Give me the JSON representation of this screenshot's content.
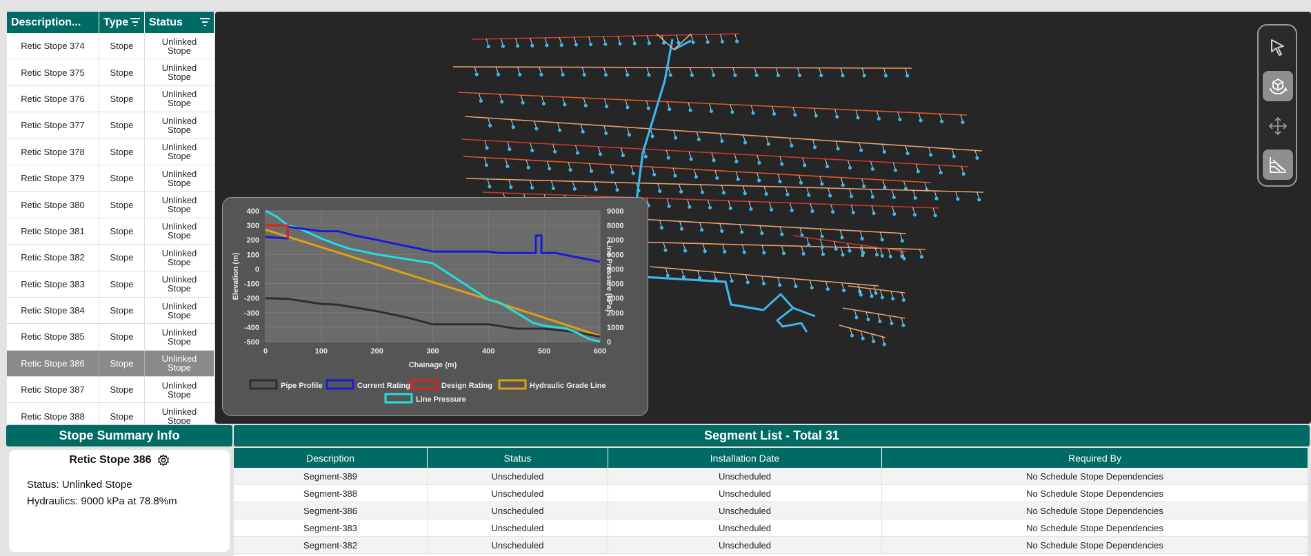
{
  "stope_table": {
    "columns": [
      "Description...",
      "Type",
      "Status"
    ],
    "rows": [
      {
        "description": "Retic Stope 374",
        "type": "Stope",
        "status": "Unlinked Stope"
      },
      {
        "description": "Retic Stope 375",
        "type": "Stope",
        "status": "Unlinked Stope"
      },
      {
        "description": "Retic Stope 376",
        "type": "Stope",
        "status": "Unlinked Stope"
      },
      {
        "description": "Retic Stope 377",
        "type": "Stope",
        "status": "Unlinked Stope"
      },
      {
        "description": "Retic Stope 378",
        "type": "Stope",
        "status": "Unlinked Stope"
      },
      {
        "description": "Retic Stope 379",
        "type": "Stope",
        "status": "Unlinked Stope"
      },
      {
        "description": "Retic Stope 380",
        "type": "Stope",
        "status": "Unlinked Stope"
      },
      {
        "description": "Retic Stope 381",
        "type": "Stope",
        "status": "Unlinked Stope"
      },
      {
        "description": "Retic Stope 382",
        "type": "Stope",
        "status": "Unlinked Stope"
      },
      {
        "description": "Retic Stope 383",
        "type": "Stope",
        "status": "Unlinked Stope"
      },
      {
        "description": "Retic Stope 384",
        "type": "Stope",
        "status": "Unlinked Stope"
      },
      {
        "description": "Retic Stope 385",
        "type": "Stope",
        "status": "Unlinked Stope"
      },
      {
        "description": "Retic Stope 386",
        "type": "Stope",
        "status": "Unlinked Stope",
        "selected": true
      },
      {
        "description": "Retic Stope 387",
        "type": "Stope",
        "status": "Unlinked Stope"
      },
      {
        "description": "Retic Stope 388",
        "type": "Stope",
        "status": "Unlinked Stope"
      }
    ]
  },
  "toolbar": {
    "tools": [
      {
        "icon": "cursor-arrow-icon",
        "active": false
      },
      {
        "icon": "rotate-3d-icon",
        "active": true
      },
      {
        "icon": "pan-move-icon",
        "active": false
      },
      {
        "icon": "section-profile-icon",
        "active": true
      }
    ]
  },
  "summary": {
    "header": "Stope Summary Info",
    "title": "Retic Stope 386",
    "status_line": "Status: Unlinked Stope",
    "hydraulics_line": "Hydraulics: 9000 kPa at 78.8%m"
  },
  "segments": {
    "header": "Segment List - Total 31",
    "columns": [
      "Description",
      "Status",
      "Installation Date",
      "Required By"
    ],
    "rows": [
      {
        "description": "Segment-389",
        "status": "Unscheduled",
        "installation_date": "Unscheduled",
        "required_by": "No Schedule Stope Dependencies"
      },
      {
        "description": "Segment-388",
        "status": "Unscheduled",
        "installation_date": "Unscheduled",
        "required_by": "No Schedule Stope Dependencies"
      },
      {
        "description": "Segment-386",
        "status": "Unscheduled",
        "installation_date": "Unscheduled",
        "required_by": "No Schedule Stope Dependencies"
      },
      {
        "description": "Segment-383",
        "status": "Unscheduled",
        "installation_date": "Unscheduled",
        "required_by": "No Schedule Stope Dependencies"
      },
      {
        "description": "Segment-382",
        "status": "Unscheduled",
        "installation_date": "Unscheduled",
        "required_by": "No Schedule Stope Dependencies"
      }
    ]
  },
  "colors": {
    "teal": "#006b65",
    "pipe_profile": "#2e2e2e",
    "current_rating": "#1a1ad6",
    "design_rating": "#e02020",
    "hydraulic_grade_line": "#e0a010",
    "line_pressure": "#20e0e0"
  },
  "chart_data": {
    "type": "line",
    "xlabel": "Chainage (m)",
    "ylabel": "Elevation (m)",
    "y2label": "Line Pressure (kPa)",
    "xlim": [
      0,
      600
    ],
    "ylim": [
      -500,
      400
    ],
    "y2lim": [
      0,
      9000
    ],
    "xticks": [
      0,
      100,
      200,
      300,
      400,
      500,
      600
    ],
    "yticks": [
      400,
      300,
      200,
      100,
      0,
      -100,
      -200,
      -300,
      -400,
      -500
    ],
    "y2ticks": [
      9000,
      8000,
      7000,
      6000,
      5000,
      4000,
      3000,
      2000,
      1000,
      0
    ],
    "series": [
      {
        "name": "Pipe Profile",
        "axis": "left",
        "x": [
          0,
          40,
          100,
          130,
          160,
          200,
          250,
          300,
          400,
          450,
          500,
          550,
          600
        ],
        "y": [
          -200,
          -205,
          -240,
          -245,
          -265,
          -290,
          -330,
          -380,
          -380,
          -410,
          -410,
          -430,
          -465
        ]
      },
      {
        "name": "Current Rating",
        "axis": "right",
        "x": [
          0,
          40,
          40,
          100,
          130,
          160,
          200,
          250,
          300,
          400,
          420,
          485,
          485,
          495,
          495,
          520,
          560,
          600
        ],
        "y": [
          7200,
          7100,
          7900,
          7600,
          7600,
          7300,
          7000,
          6600,
          6200,
          6200,
          6100,
          6100,
          7300,
          7300,
          6100,
          6100,
          5800,
          5500
        ]
      },
      {
        "name": "Design Rating",
        "axis": "right",
        "x": [
          0,
          40,
          40
        ],
        "y": [
          8000,
          8000,
          7100
        ]
      },
      {
        "name": "Hydraulic Grade Line",
        "axis": "left",
        "x": [
          0,
          100,
          200,
          300,
          400,
          500,
          600
        ],
        "y": [
          270,
          150,
          30,
          -90,
          -210,
          -335,
          -460
        ]
      },
      {
        "name": "Line Pressure",
        "axis": "right",
        "x": [
          0,
          20,
          40,
          60,
          100,
          120,
          150,
          200,
          300,
          400,
          420,
          480,
          500,
          540,
          560,
          580,
          600
        ],
        "y": [
          9000,
          8600,
          8000,
          7800,
          7100,
          6800,
          6400,
          6000,
          5400,
          2900,
          2700,
          1300,
          1100,
          900,
          600,
          200,
          0
        ]
      }
    ],
    "legend": [
      "Pipe Profile",
      "Current Rating",
      "Design Rating",
      "Hydraulic Grade Line",
      "Line Pressure"
    ],
    "legend_position": "bottom-center"
  }
}
